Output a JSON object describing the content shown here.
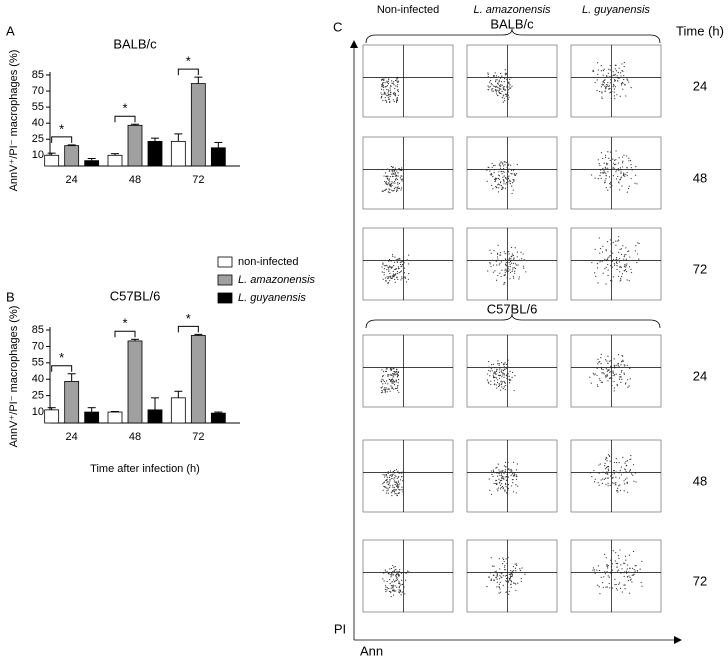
{
  "chart_data": [
    {
      "type": "bar",
      "panel": "A",
      "title": "BALB/c",
      "ylabel": "AnnV⁺/PI⁻ macrophages (%)",
      "categories": [
        "24",
        "48",
        "72"
      ],
      "series": [
        {
          "name": "non-infected",
          "color": "#ffffff",
          "values": [
            10,
            10,
            23
          ],
          "errors": [
            2,
            1.5,
            7
          ]
        },
        {
          "name": "L. amazonensis",
          "color": "#a0a0a0",
          "values": [
            19,
            38,
            77
          ],
          "errors": [
            0.7,
            1,
            6
          ]
        },
        {
          "name": "L. guyanensis",
          "color": "#000000",
          "values": [
            5,
            23,
            17
          ],
          "errors": [
            2,
            3,
            5
          ]
        }
      ],
      "significance": [
        "*",
        "*",
        "*"
      ],
      "ylim": [
        0,
        85
      ],
      "yticks": [
        10,
        25,
        40,
        55,
        70,
        85
      ]
    },
    {
      "type": "bar",
      "panel": "B",
      "title": "C57BL/6",
      "ylabel": "AnnV⁺/PI⁻ macrophages (%)",
      "xlabel": "Time after infection (h)",
      "categories": [
        "24",
        "48",
        "72"
      ],
      "series": [
        {
          "name": "non-infected",
          "color": "#ffffff",
          "values": [
            12,
            10,
            23
          ],
          "errors": [
            2,
            0.5,
            6
          ]
        },
        {
          "name": "L. amazonensis",
          "color": "#a0a0a0",
          "values": [
            38,
            75,
            80
          ],
          "errors": [
            7,
            1.5,
            1
          ]
        },
        {
          "name": "L. guyanensis",
          "color": "#000000",
          "values": [
            10,
            12,
            9
          ],
          "errors": [
            4,
            11,
            1
          ]
        }
      ],
      "significance": [
        "*",
        "*",
        "*"
      ],
      "ylim": [
        0,
        85
      ],
      "yticks": [
        10,
        25,
        40,
        55,
        70,
        85
      ],
      "legend": "top-right"
    }
  ],
  "panel_c": {
    "label": "C",
    "columns": [
      "Non-infected",
      "L. amazonensis",
      "L. guyanensis"
    ],
    "strains": [
      "BALB/c",
      "C57BL/6"
    ],
    "times": [
      "24",
      "48",
      "72"
    ],
    "time_label": "Time (h)",
    "y_axis": "PI",
    "x_axis": "Ann"
  }
}
